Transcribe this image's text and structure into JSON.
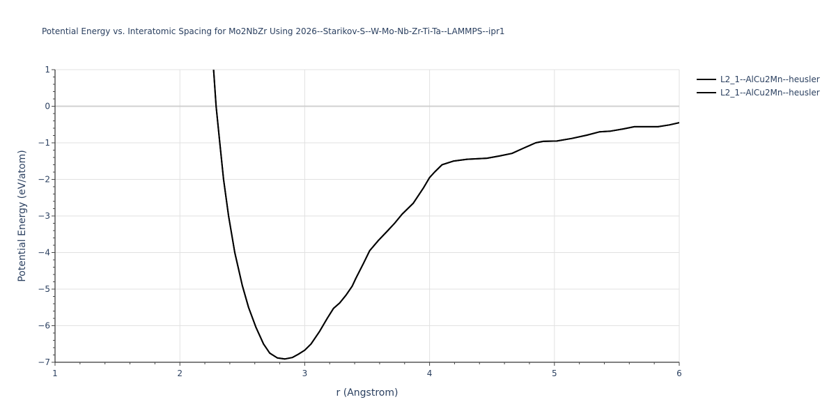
{
  "chart": {
    "title": "Potential Energy vs. Interatomic Spacing for Mo2NbZr Using 2026--Starikov-S--W-Mo-Nb-Zr-Ti-Ta--LAMMPS--ipr1",
    "xlabel": "r (Angstrom)",
    "ylabel": "Potential Energy (eV/atom)",
    "legend": [
      "L2_1--AlCu2Mn--heusler",
      "L2_1--AlCu2Mn--heusler"
    ]
  },
  "chart_data": {
    "type": "line",
    "title": "Potential Energy vs. Interatomic Spacing for Mo2NbZr Using 2026--Starikov-S--W-Mo-Nb-Zr-Ti-Ta--LAMMPS--ipr1",
    "xlabel": "r (Angstrom)",
    "ylabel": "Potential Energy (eV/atom)",
    "xlim": [
      1,
      6
    ],
    "ylim": [
      -7,
      1
    ],
    "x_ticks": [
      1,
      2,
      3,
      4,
      5,
      6
    ],
    "y_ticks": [
      1,
      0,
      -1,
      -2,
      -3,
      -4,
      -5,
      -6,
      -7
    ],
    "grid": true,
    "legend_position": "top-right outside",
    "series": [
      {
        "name": "L2_1--AlCu2Mn--heusler",
        "color": "#000000",
        "x": [
          2.27,
          2.29,
          2.32,
          2.35,
          2.39,
          2.44,
          2.5,
          2.55,
          2.61,
          2.67,
          2.72,
          2.78,
          2.84,
          2.9,
          2.95,
          3.0,
          3.05,
          3.12,
          3.18,
          3.23,
          3.28,
          3.33,
          3.38,
          3.41,
          3.47,
          3.52,
          3.59,
          3.66,
          3.72,
          3.78,
          3.87,
          3.95,
          4.0,
          4.04,
          4.1,
          4.19,
          4.3,
          4.46,
          4.56,
          4.66,
          4.75,
          4.85,
          4.91,
          5.02,
          5.14,
          5.26,
          5.36,
          5.45,
          5.55,
          5.64,
          5.74,
          5.83,
          5.92,
          6.0
        ],
        "y": [
          1.0,
          0.0,
          -1.0,
          -2.0,
          -3.0,
          -4.0,
          -4.9,
          -5.5,
          -6.05,
          -6.5,
          -6.75,
          -6.88,
          -6.91,
          -6.87,
          -6.78,
          -6.67,
          -6.5,
          -6.15,
          -5.8,
          -5.53,
          -5.38,
          -5.17,
          -4.92,
          -4.7,
          -4.3,
          -3.95,
          -3.67,
          -3.42,
          -3.2,
          -2.95,
          -2.65,
          -2.24,
          -1.95,
          -1.8,
          -1.6,
          -1.5,
          -1.45,
          -1.42,
          -1.36,
          -1.29,
          -1.15,
          -1.0,
          -0.96,
          -0.95,
          -0.88,
          -0.79,
          -0.7,
          -0.68,
          -0.62,
          -0.56,
          -0.56,
          -0.56,
          -0.51,
          -0.45
        ]
      },
      {
        "name": "L2_1--AlCu2Mn--heusler",
        "color": "#000000",
        "x": [
          2.27,
          2.29,
          2.32,
          2.35,
          2.39,
          2.44,
          2.5,
          2.55,
          2.61,
          2.67,
          2.72,
          2.78,
          2.84,
          2.9,
          2.95,
          3.0,
          3.05,
          3.12,
          3.18,
          3.23,
          3.28,
          3.33,
          3.38,
          3.41,
          3.47,
          3.52,
          3.59,
          3.66,
          3.72,
          3.78,
          3.87,
          3.95,
          4.0,
          4.04,
          4.1,
          4.19,
          4.3,
          4.46,
          4.56,
          4.66,
          4.75,
          4.85,
          4.91,
          5.02,
          5.14,
          5.26,
          5.36,
          5.45,
          5.55,
          5.64,
          5.74,
          5.83,
          5.92,
          6.0
        ],
        "y": [
          1.0,
          0.0,
          -1.0,
          -2.0,
          -3.0,
          -4.0,
          -4.9,
          -5.5,
          -6.05,
          -6.5,
          -6.75,
          -6.88,
          -6.91,
          -6.87,
          -6.78,
          -6.67,
          -6.5,
          -6.15,
          -5.8,
          -5.53,
          -5.38,
          -5.17,
          -4.92,
          -4.7,
          -4.3,
          -3.95,
          -3.67,
          -3.42,
          -3.2,
          -2.95,
          -2.65,
          -2.24,
          -1.95,
          -1.8,
          -1.6,
          -1.5,
          -1.45,
          -1.42,
          -1.36,
          -1.29,
          -1.15,
          -1.0,
          -0.96,
          -0.95,
          -0.88,
          -0.79,
          -0.7,
          -0.68,
          -0.62,
          -0.56,
          -0.56,
          -0.56,
          -0.51,
          -0.45
        ]
      }
    ]
  }
}
